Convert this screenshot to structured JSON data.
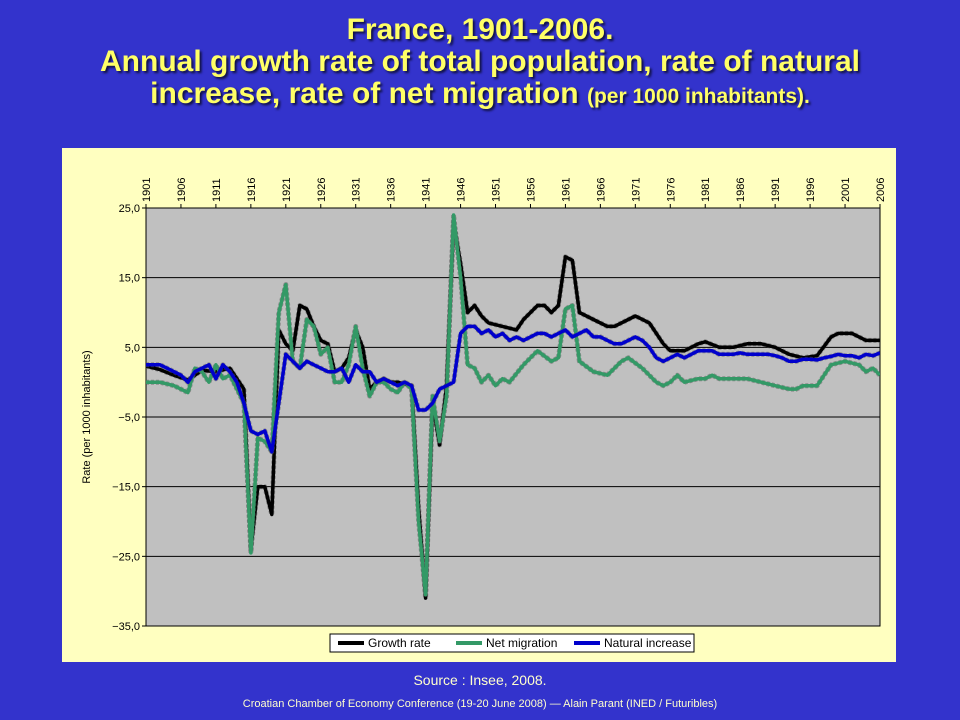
{
  "header": {
    "title_line1": "France, 1901-2006.",
    "title_line2": "Annual growth rate of total population, rate of natural",
    "title_line3_main": "increase, rate of net migration",
    "title_line3_small": "(per 1000 inhabitants)."
  },
  "source": "Source : Insee, 2008.",
  "footer": "Croatian Chamber of Economy Conference (19-20 June 2008) — Alain Parant (INED / Futuribles)",
  "chart_data": {
    "type": "line",
    "ylabel": "Rate (per 1000 inhabitants)",
    "ylim": [
      -35,
      25
    ],
    "y_ticks": [
      25,
      15,
      5,
      -5,
      -15,
      -25,
      -35
    ],
    "y_tick_labels": [
      "25,0",
      "15,0",
      "5,0",
      "−5,0",
      "−15,0",
      "−25,0",
      "−35,0"
    ],
    "xlim": [
      1901,
      2006
    ],
    "x_ticks": [
      1901,
      1906,
      1911,
      1916,
      1921,
      1926,
      1931,
      1936,
      1941,
      1946,
      1951,
      1956,
      1961,
      1966,
      1971,
      1976,
      1981,
      1986,
      1991,
      1996,
      2001,
      2006
    ],
    "x_tick_position": "top",
    "grid": true,
    "legend_position": "bottom",
    "series": [
      {
        "name": "Growth rate",
        "color": "#000000",
        "points": [
          [
            1901,
            2.3
          ],
          [
            1903,
            1.8
          ],
          [
            1905,
            1.0
          ],
          [
            1907,
            0.3
          ],
          [
            1909,
            1.7
          ],
          [
            1911,
            1.5
          ],
          [
            1913,
            2.0
          ],
          [
            1915,
            -1.0
          ],
          [
            1916,
            -24
          ],
          [
            1917,
            -15
          ],
          [
            1918,
            -15
          ],
          [
            1919,
            -19
          ],
          [
            1920,
            7.5
          ],
          [
            1921,
            5.5
          ],
          [
            1922,
            4.5
          ],
          [
            1923,
            11
          ],
          [
            1924,
            10.5
          ],
          [
            1925,
            8
          ],
          [
            1926,
            6
          ],
          [
            1927,
            5.5
          ],
          [
            1928,
            1.5
          ],
          [
            1929,
            2
          ],
          [
            1930,
            3.5
          ],
          [
            1931,
            7.5
          ],
          [
            1932,
            5
          ],
          [
            1933,
            -1
          ],
          [
            1934,
            0
          ],
          [
            1935,
            0.5
          ],
          [
            1936,
            0
          ],
          [
            1937,
            0
          ],
          [
            1939,
            -0.5
          ],
          [
            1940,
            -18
          ],
          [
            1941,
            -31
          ],
          [
            1942,
            -3
          ],
          [
            1943,
            -9
          ],
          [
            1944,
            -0.5
          ],
          [
            1945,
            23
          ],
          [
            1946,
            17
          ],
          [
            1947,
            10
          ],
          [
            1948,
            11
          ],
          [
            1949,
            9.5
          ],
          [
            1950,
            8.5
          ],
          [
            1952,
            8
          ],
          [
            1954,
            7.5
          ],
          [
            1955,
            9
          ],
          [
            1957,
            11
          ],
          [
            1958,
            11
          ],
          [
            1959,
            10
          ],
          [
            1960,
            11
          ],
          [
            1961,
            18
          ],
          [
            1962,
            17.5
          ],
          [
            1963,
            10
          ],
          [
            1965,
            9
          ],
          [
            1967,
            8
          ],
          [
            1968,
            8
          ],
          [
            1970,
            9
          ],
          [
            1971,
            9.5
          ],
          [
            1973,
            8.5
          ],
          [
            1975,
            5.5
          ],
          [
            1976,
            4.5
          ],
          [
            1977,
            4.5
          ],
          [
            1978,
            4.5
          ],
          [
            1979,
            5
          ],
          [
            1980,
            5.5
          ],
          [
            1981,
            5.8
          ],
          [
            1983,
            5
          ],
          [
            1985,
            5
          ],
          [
            1987,
            5.5
          ],
          [
            1989,
            5.5
          ],
          [
            1991,
            5
          ],
          [
            1993,
            4
          ],
          [
            1995,
            3.5
          ],
          [
            1997,
            3.8
          ],
          [
            1999,
            6.5
          ],
          [
            2000,
            7
          ],
          [
            2002,
            7
          ],
          [
            2004,
            6
          ],
          [
            2006,
            6
          ]
        ]
      },
      {
        "name": "Net migration",
        "color": "#339966",
        "points": [
          [
            1901,
            0
          ],
          [
            1903,
            0
          ],
          [
            1905,
            -0.5
          ],
          [
            1907,
            -1.5
          ],
          [
            1908,
            2
          ],
          [
            1909,
            1.5
          ],
          [
            1910,
            0
          ],
          [
            1911,
            2.5
          ],
          [
            1912,
            0.5
          ],
          [
            1913,
            1
          ],
          [
            1914,
            -1
          ],
          [
            1915,
            -3
          ],
          [
            1916,
            -24.5
          ],
          [
            1917,
            -8
          ],
          [
            1918,
            -8.5
          ],
          [
            1919,
            -10
          ],
          [
            1920,
            10
          ],
          [
            1921,
            14
          ],
          [
            1922,
            3
          ],
          [
            1923,
            2
          ],
          [
            1924,
            9
          ],
          [
            1925,
            8
          ],
          [
            1926,
            4
          ],
          [
            1927,
            5
          ],
          [
            1928,
            0
          ],
          [
            1929,
            0
          ],
          [
            1930,
            2.5
          ],
          [
            1931,
            8
          ],
          [
            1932,
            2
          ],
          [
            1933,
            -2
          ],
          [
            1934,
            0
          ],
          [
            1935,
            0
          ],
          [
            1936,
            -1
          ],
          [
            1937,
            -1.5
          ],
          [
            1938,
            0
          ],
          [
            1939,
            -1
          ],
          [
            1940,
            -20
          ],
          [
            1941,
            -30.5
          ],
          [
            1942,
            -2
          ],
          [
            1943,
            -8.5
          ],
          [
            1944,
            -2
          ],
          [
            1945,
            24
          ],
          [
            1946,
            15
          ],
          [
            1947,
            2.5
          ],
          [
            1948,
            2
          ],
          [
            1949,
            0
          ],
          [
            1950,
            1
          ],
          [
            1951,
            -0.5
          ],
          [
            1952,
            0.5
          ],
          [
            1953,
            0
          ],
          [
            1955,
            2.5
          ],
          [
            1957,
            4.5
          ],
          [
            1959,
            3
          ],
          [
            1960,
            3.5
          ],
          [
            1961,
            10.5
          ],
          [
            1962,
            11
          ],
          [
            1963,
            3
          ],
          [
            1965,
            1.5
          ],
          [
            1967,
            1
          ],
          [
            1969,
            3
          ],
          [
            1970,
            3.5
          ],
          [
            1972,
            2
          ],
          [
            1974,
            0
          ],
          [
            1975,
            -0.5
          ],
          [
            1976,
            0
          ],
          [
            1977,
            1
          ],
          [
            1978,
            0
          ],
          [
            1980,
            0.5
          ],
          [
            1981,
            0.5
          ],
          [
            1982,
            1
          ],
          [
            1983,
            0.5
          ],
          [
            1985,
            0.5
          ],
          [
            1987,
            0.5
          ],
          [
            1989,
            0
          ],
          [
            1991,
            -0.5
          ],
          [
            1993,
            -1
          ],
          [
            1994,
            -1
          ],
          [
            1995,
            -0.5
          ],
          [
            1997,
            -0.5
          ],
          [
            1998,
            1
          ],
          [
            1999,
            2.5
          ],
          [
            2001,
            3
          ],
          [
            2003,
            2.5
          ],
          [
            2004,
            1.5
          ],
          [
            2005,
            2
          ],
          [
            2006,
            1
          ]
        ]
      },
      {
        "name": "Natural increase",
        "color": "#0000cc",
        "points": [
          [
            1901,
            2.5
          ],
          [
            1903,
            2.5
          ],
          [
            1904,
            2
          ],
          [
            1906,
            1
          ],
          [
            1907,
            0
          ],
          [
            1908,
            1.5
          ],
          [
            1910,
            2.5
          ],
          [
            1911,
            0.5
          ],
          [
            1912,
            2.5
          ],
          [
            1913,
            1.5
          ],
          [
            1914,
            0
          ],
          [
            1915,
            -3
          ],
          [
            1916,
            -7
          ],
          [
            1917,
            -7.5
          ],
          [
            1918,
            -7
          ],
          [
            1919,
            -10
          ],
          [
            1920,
            -3
          ],
          [
            1921,
            4
          ],
          [
            1922,
            3
          ],
          [
            1923,
            2
          ],
          [
            1924,
            3
          ],
          [
            1925,
            2.5
          ],
          [
            1926,
            2
          ],
          [
            1927,
            1.5
          ],
          [
            1928,
            1.5
          ],
          [
            1929,
            2
          ],
          [
            1930,
            0
          ],
          [
            1931,
            2.5
          ],
          [
            1932,
            1.5
          ],
          [
            1933,
            1.5
          ],
          [
            1934,
            0
          ],
          [
            1935,
            0.5
          ],
          [
            1936,
            0
          ],
          [
            1937,
            -0.5
          ],
          [
            1938,
            0
          ],
          [
            1939,
            -0.5
          ],
          [
            1940,
            -4
          ],
          [
            1941,
            -4
          ],
          [
            1942,
            -3
          ],
          [
            1943,
            -1
          ],
          [
            1944,
            -0.5
          ],
          [
            1945,
            0
          ],
          [
            1946,
            7
          ],
          [
            1947,
            8
          ],
          [
            1948,
            8
          ],
          [
            1949,
            7
          ],
          [
            1950,
            7.5
          ],
          [
            1951,
            6.5
          ],
          [
            1952,
            7
          ],
          [
            1953,
            6
          ],
          [
            1954,
            6.5
          ],
          [
            1955,
            6
          ],
          [
            1956,
            6.5
          ],
          [
            1957,
            7
          ],
          [
            1958,
            7
          ],
          [
            1959,
            6.5
          ],
          [
            1960,
            7
          ],
          [
            1961,
            7.5
          ],
          [
            1962,
            6.5
          ],
          [
            1963,
            7
          ],
          [
            1964,
            7.5
          ],
          [
            1965,
            6.5
          ],
          [
            1966,
            6.5
          ],
          [
            1967,
            6
          ],
          [
            1968,
            5.5
          ],
          [
            1969,
            5.5
          ],
          [
            1970,
            6
          ],
          [
            1971,
            6.5
          ],
          [
            1972,
            6
          ],
          [
            1973,
            5
          ],
          [
            1974,
            3.5
          ],
          [
            1975,
            3
          ],
          [
            1976,
            3.5
          ],
          [
            1977,
            4
          ],
          [
            1978,
            3.5
          ],
          [
            1979,
            4
          ],
          [
            1980,
            4.5
          ],
          [
            1981,
            4.5
          ],
          [
            1982,
            4.5
          ],
          [
            1983,
            4
          ],
          [
            1984,
            4
          ],
          [
            1985,
            4
          ],
          [
            1986,
            4.2
          ],
          [
            1987,
            4
          ],
          [
            1988,
            4
          ],
          [
            1989,
            4
          ],
          [
            1990,
            4
          ],
          [
            1991,
            3.8
          ],
          [
            1992,
            3.5
          ],
          [
            1993,
            3
          ],
          [
            1994,
            3
          ],
          [
            1995,
            3.3
          ],
          [
            1996,
            3.3
          ],
          [
            1997,
            3.2
          ],
          [
            1998,
            3.5
          ],
          [
            1999,
            3.7
          ],
          [
            2000,
            4
          ],
          [
            2001,
            3.8
          ],
          [
            2002,
            3.8
          ],
          [
            2003,
            3.5
          ],
          [
            2004,
            4
          ],
          [
            2005,
            3.8
          ],
          [
            2006,
            4.2
          ]
        ]
      }
    ]
  }
}
